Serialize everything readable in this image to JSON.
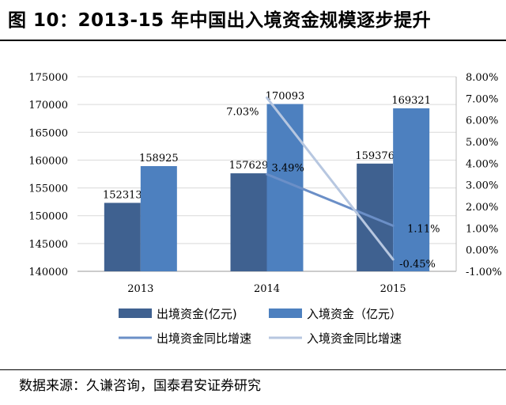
{
  "figure": {
    "title": "图 10：2013-15 年中国出入境资金规模逐步提升",
    "source": "数据来源：久谦咨询，国泰君安证券研究"
  },
  "chart_data": {
    "type": "bar+line",
    "categories": [
      "2013",
      "2014",
      "2015"
    ],
    "bars": [
      {
        "name": "出境资金(亿元)",
        "color": "#3f6190",
        "values": [
          152313,
          157629,
          159376
        ],
        "labels": [
          "152313",
          "157629",
          "159376"
        ]
      },
      {
        "name": "入境资金（亿元）",
        "color": "#4d80bf",
        "values": [
          158925,
          170093,
          169321
        ],
        "labels": [
          "158925",
          "170093",
          "169321"
        ]
      }
    ],
    "lines": [
      {
        "name": "出境资金同比增速",
        "color": "#6b8fc7",
        "points": [
          {
            "x": "2014",
            "y": 3.49
          },
          {
            "x": "2015",
            "y": 1.11
          }
        ],
        "labels": [
          "3.49%",
          "1.11%"
        ]
      },
      {
        "name": "入境资金同比增速",
        "color": "#b7c7e0",
        "points": [
          {
            "x": "2014",
            "y": 7.03
          },
          {
            "x": "2015",
            "y": -0.45
          }
        ],
        "labels": [
          "7.03%",
          "-0.45%"
        ]
      }
    ],
    "left_axis": {
      "min": 140000,
      "max": 175000,
      "ticks": [
        "140000",
        "145000",
        "150000",
        "155000",
        "160000",
        "165000",
        "170000",
        "175000"
      ]
    },
    "right_axis": {
      "min": -1.0,
      "max": 8.0,
      "ticks": [
        "-1.00%",
        "0.00%",
        "1.00%",
        "2.00%",
        "3.00%",
        "4.00%",
        "5.00%",
        "6.00%",
        "7.00%",
        "8.00%"
      ]
    },
    "legend": [
      "出境资金(亿元)",
      "入境资金（亿元）",
      "出境资金同比增速",
      "入境资金同比增速"
    ]
  }
}
